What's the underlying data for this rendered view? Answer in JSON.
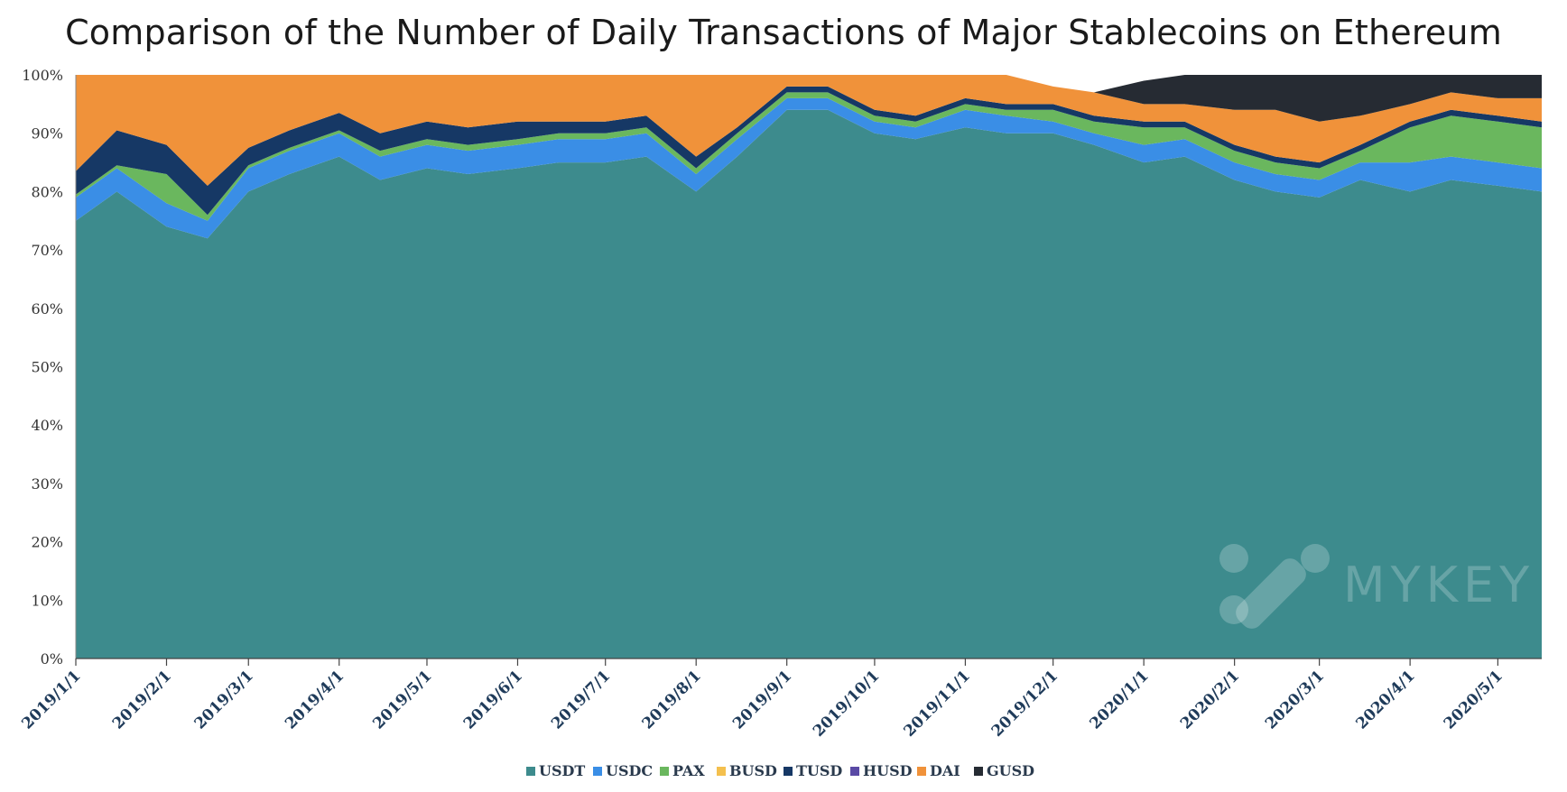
{
  "chart_data": {
    "type": "area",
    "stacked": true,
    "normalized": true,
    "title": "Comparison of the Number of Daily Transactions of Major Stablecoins on Ethereum",
    "xlabel": "",
    "ylabel": "",
    "ylim": [
      0,
      100
    ],
    "y_ticks": [
      "0%",
      "10%",
      "20%",
      "30%",
      "40%",
      "50%",
      "60%",
      "70%",
      "80%",
      "90%",
      "100%"
    ],
    "x_ticks": [
      "2019/1/1",
      "2019/2/1",
      "2019/3/1",
      "2019/4/1",
      "2019/5/1",
      "2019/6/1",
      "2019/7/1",
      "2019/8/1",
      "2019/9/1",
      "2019/10/1",
      "2019/11/1",
      "2019/12/1",
      "2020/1/1",
      "2020/2/1",
      "2020/3/1",
      "2020/4/1",
      "2020/5/1"
    ],
    "x_range": [
      "2019/1/1",
      "2020/5/16"
    ],
    "grid": false,
    "legend_position": "bottom",
    "x": [
      "2019/1/1",
      "2019/1/15",
      "2019/2/1",
      "2019/2/15",
      "2019/3/1",
      "2019/3/15",
      "2019/4/1",
      "2019/4/15",
      "2019/5/1",
      "2019/5/15",
      "2019/6/1",
      "2019/6/15",
      "2019/7/1",
      "2019/7/15",
      "2019/8/1",
      "2019/8/15",
      "2019/9/1",
      "2019/9/15",
      "2019/10/1",
      "2019/10/15",
      "2019/11/1",
      "2019/11/15",
      "2019/12/1",
      "2019/12/15",
      "2020/1/1",
      "2020/1/15",
      "2020/2/1",
      "2020/2/15",
      "2020/3/1",
      "2020/3/15",
      "2020/4/1",
      "2020/4/15",
      "2020/5/1",
      "2020/5/16"
    ],
    "series": [
      {
        "name": "USDT",
        "color": "#3d8b8d",
        "values": [
          75,
          80,
          74,
          72,
          80,
          83,
          86,
          82,
          84,
          83,
          84,
          85,
          85,
          86,
          80,
          86,
          94,
          94,
          90,
          89,
          91,
          90,
          90,
          88,
          85,
          86,
          82,
          80,
          79,
          82,
          80,
          82,
          81,
          80
        ]
      },
      {
        "name": "USDC",
        "color": "#3a8ee6",
        "values": [
          4,
          4,
          4,
          3,
          4,
          4,
          4,
          4,
          4,
          4,
          4,
          4,
          4,
          4,
          3,
          3,
          2,
          2,
          2,
          2,
          3,
          3,
          2,
          2,
          3,
          3,
          3,
          3,
          3,
          3,
          5,
          4,
          4,
          4
        ]
      },
      {
        "name": "PAX",
        "color": "#6ab75e",
        "values": [
          0.5,
          0.5,
          5,
          1,
          0.5,
          0.5,
          0.5,
          1,
          1,
          1,
          1,
          1,
          1,
          1,
          1,
          1,
          1,
          1,
          1,
          1,
          1,
          1,
          2,
          2,
          3,
          2,
          2,
          2,
          2,
          2,
          6,
          7,
          7,
          7
        ]
      },
      {
        "name": "BUSD",
        "color": "#f4c04e",
        "values": [
          0,
          0,
          0,
          0,
          0,
          0,
          0,
          0,
          0,
          0,
          0,
          0,
          0,
          0,
          0,
          0,
          0,
          0,
          0,
          0,
          0,
          0,
          0,
          0,
          0,
          0,
          0,
          0,
          0,
          0,
          0,
          0,
          0,
          0
        ]
      },
      {
        "name": "TUSD",
        "color": "#163865",
        "values": [
          4,
          6,
          5,
          5,
          3,
          3,
          3,
          3,
          3,
          3,
          3,
          2,
          2,
          2,
          2,
          1,
          1,
          1,
          1,
          1,
          1,
          1,
          1,
          1,
          1,
          1,
          1,
          1,
          1,
          1,
          1,
          1,
          1,
          1
        ]
      },
      {
        "name": "HUSD",
        "color": "#5a4aa5",
        "values": [
          0,
          0,
          0,
          0,
          0,
          0,
          0,
          0,
          0,
          0,
          0,
          0,
          0,
          0,
          0,
          0,
          0,
          0,
          0,
          0,
          0,
          0,
          0,
          0,
          0,
          0,
          0,
          0,
          0,
          0,
          0,
          0,
          0,
          0
        ]
      },
      {
        "name": "DAI",
        "color": "#f0923a",
        "values": [
          16.5,
          9.5,
          12,
          19,
          12.5,
          9.5,
          6.5,
          10,
          8,
          9,
          8,
          8,
          8,
          7,
          14,
          9,
          2,
          2,
          6,
          7,
          4,
          5,
          3,
          4,
          3,
          3,
          6,
          8,
          7,
          5,
          3,
          3,
          3,
          4
        ]
      },
      {
        "name": "GUSD",
        "color": "#262b33",
        "values": [
          0,
          0,
          0,
          0,
          0,
          0,
          0,
          0,
          0,
          0,
          0,
          0,
          0,
          0,
          0,
          0,
          0,
          0,
          0,
          0,
          0,
          0,
          0,
          0,
          4,
          5,
          6,
          6,
          8,
          7,
          5,
          3,
          4,
          4
        ]
      }
    ]
  },
  "watermark": {
    "text": "MYKEY"
  }
}
